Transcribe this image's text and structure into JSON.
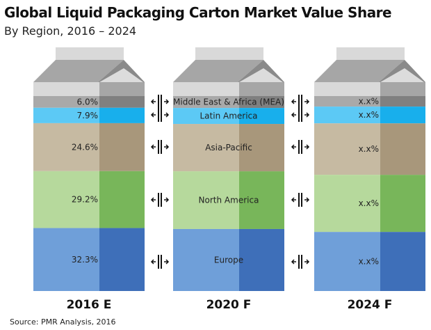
{
  "chart_data": {
    "type": "bar",
    "stacked": true,
    "title": "Global Liquid Packaging Carton Market Value Share",
    "subtitle": "By Region, 2016 – 2024",
    "categories": [
      "2016 E",
      "2020 F",
      "2024 F"
    ],
    "series": [
      {
        "name": "Middle East & Africa (MEA)",
        "values": [
          6.0,
          null,
          null
        ],
        "labels": [
          "6.0%",
          "",
          "x.x%"
        ],
        "color": "#a9a9a9",
        "shade": "#808080"
      },
      {
        "name": "Latin America",
        "values": [
          7.9,
          null,
          null
        ],
        "labels": [
          "7.9%",
          "",
          "x.x%"
        ],
        "color": "#5cc9f5",
        "shade": "#18afec"
      },
      {
        "name": "Asia-Pacific",
        "values": [
          24.6,
          null,
          null
        ],
        "labels": [
          "24.6%",
          "",
          "x.x%"
        ],
        "color": "#c6baa2",
        "shade": "#a8977b"
      },
      {
        "name": "North America",
        "values": [
          29.2,
          null,
          null
        ],
        "labels": [
          "29.2%",
          "",
          "x.x%"
        ],
        "color": "#b6d99c",
        "shade": "#78b65a"
      },
      {
        "name": "Europe",
        "values": [
          32.3,
          null,
          null
        ],
        "labels": [
          "32.3%",
          "",
          "x.x%"
        ],
        "color": "#6f9fd9",
        "shade": "#3e6fb9"
      }
    ],
    "unit": "%",
    "legend": "inline labels on middle carton"
  },
  "source": "Source:  PMR Analysis, 2016"
}
